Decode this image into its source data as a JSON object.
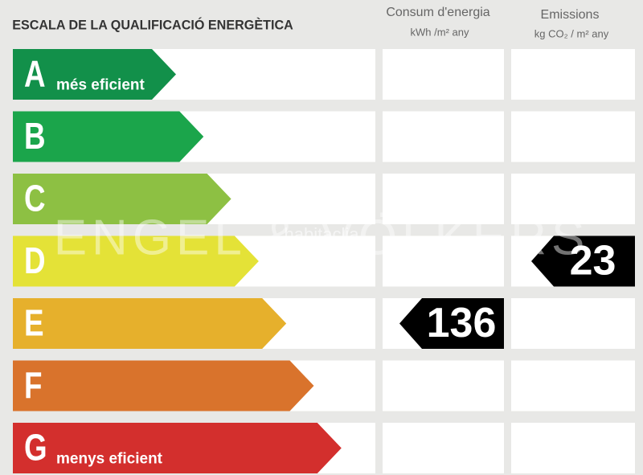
{
  "header": {
    "title": "ESCALA DE LA QUALIFICACIÓ ENERGÈTICA",
    "consumption": {
      "title": "Consum d'energia",
      "unit": "kWh /m² any"
    },
    "emissions": {
      "title": "Emissions",
      "unit": "kg CO₂ / m² any"
    }
  },
  "rows": [
    {
      "letter": "A",
      "label": "més eficient",
      "color": "#12904a"
    },
    {
      "letter": "B",
      "color": "#1ba54b"
    },
    {
      "letter": "C",
      "color": "#8dc043"
    },
    {
      "letter": "D",
      "color": "#e4e237",
      "emissions": 23
    },
    {
      "letter": "E",
      "color": "#e6b02c",
      "consumption": 136
    },
    {
      "letter": "F",
      "color": "#d9732c"
    },
    {
      "letter": "G",
      "label": "menys eficient",
      "color": "#d32f2d"
    }
  ],
  "watermark": {
    "brand": "ENGEL & VÖLKERS",
    "site": "habitaclia"
  }
}
